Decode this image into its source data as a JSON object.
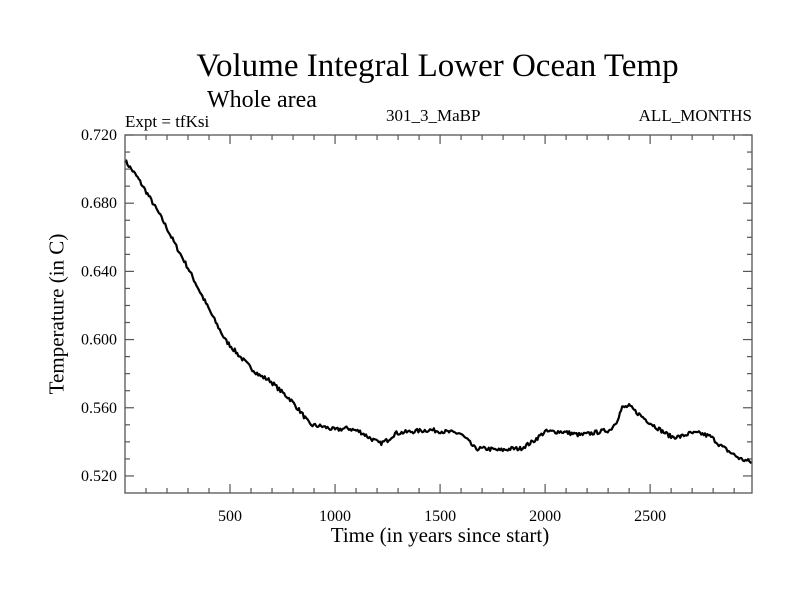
{
  "chart_data": {
    "type": "line",
    "title": "Volume Integral Lower Ocean Temp",
    "subtitle": "Whole area",
    "annotations": {
      "experiment": "Expt = tfKsi",
      "run": "301_3_MaBP",
      "period": "ALL_MONTHS"
    },
    "xlabel": "Time (in years since start)",
    "ylabel": "Temperature (in C)",
    "xlim": [
      0,
      2985
    ],
    "ylim": [
      0.51,
      0.72
    ],
    "xticks": [
      500,
      1000,
      1500,
      2000,
      2500
    ],
    "xtick_labels": [
      "500",
      "1000",
      "1500",
      "2000",
      "2500"
    ],
    "x_minor_step": 100,
    "yticks": [
      0.52,
      0.56,
      0.6,
      0.64,
      0.68,
      0.72
    ],
    "ytick_labels": [
      "0.520",
      "0.560",
      "0.600",
      "0.640",
      "0.680",
      "0.720"
    ],
    "y_minor_step": 0.01,
    "grid": false,
    "legend": "none",
    "series": [
      {
        "name": "Volume Integral Lower Ocean Temp",
        "color": "#000000",
        "x": [
          0,
          60,
          119,
          180,
          238,
          300,
          357,
          420,
          476,
          540,
          595,
          640,
          690,
          740,
          786,
          840,
          881,
          940,
          1000,
          1060,
          1119,
          1170,
          1214,
          1250,
          1286,
          1360,
          1452,
          1520,
          1595,
          1630,
          1667,
          1720,
          1786,
          1840,
          1881,
          1940,
          2000,
          2080,
          2167,
          2220,
          2262,
          2310,
          2340,
          2367,
          2400,
          2429,
          2490,
          2548,
          2600,
          2643,
          2690,
          2738,
          2790,
          2833,
          2880,
          2929,
          2985
        ],
        "y": [
          0.705,
          0.695,
          0.683,
          0.67,
          0.656,
          0.642,
          0.628,
          0.613,
          0.6,
          0.591,
          0.584,
          0.579,
          0.576,
          0.57,
          0.565,
          0.557,
          0.55,
          0.549,
          0.547,
          0.548,
          0.546,
          0.542,
          0.539,
          0.541,
          0.545,
          0.546,
          0.547,
          0.546,
          0.545,
          0.541,
          0.536,
          0.536,
          0.535,
          0.536,
          0.536,
          0.54,
          0.546,
          0.546,
          0.544,
          0.545,
          0.546,
          0.547,
          0.552,
          0.56,
          0.561,
          0.558,
          0.552,
          0.547,
          0.543,
          0.543,
          0.545,
          0.545,
          0.543,
          0.538,
          0.534,
          0.53,
          0.528
        ]
      }
    ]
  }
}
